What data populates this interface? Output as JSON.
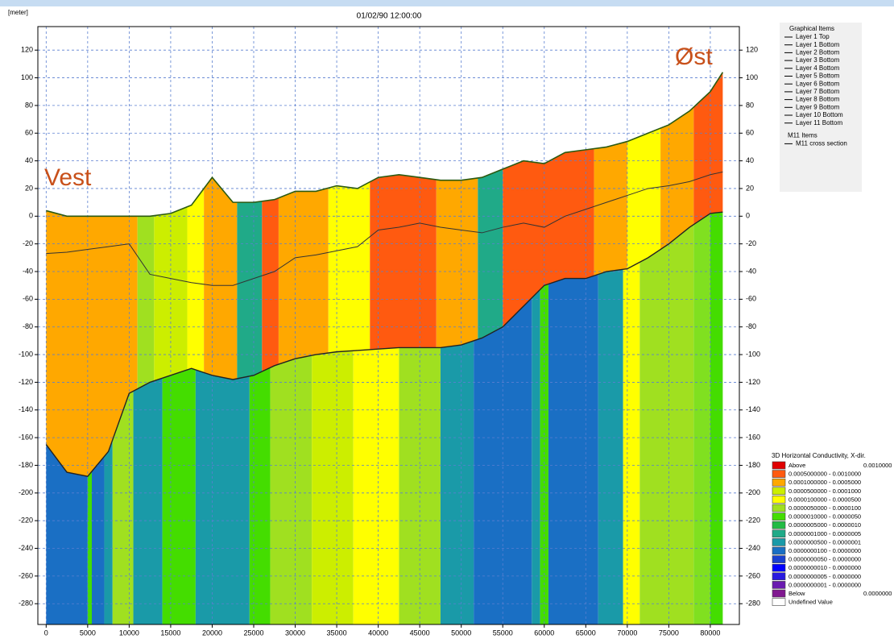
{
  "chart_data": {
    "type": "cross_section",
    "title": "01/02/90 12:00:00",
    "y_unit": "[meter]",
    "annotations": [
      "Vest",
      "Øst"
    ],
    "xlim": [
      -1000,
      83500
    ],
    "ylim": [
      -295,
      137
    ],
    "xticks": [
      0,
      5000,
      10000,
      15000,
      20000,
      25000,
      30000,
      35000,
      40000,
      45000,
      50000,
      55000,
      60000,
      65000,
      70000,
      75000,
      80000
    ],
    "yticks": [
      -280,
      -260,
      -240,
      -220,
      -200,
      -180,
      -160,
      -140,
      -120,
      -100,
      -80,
      -60,
      -40,
      -20,
      0,
      20,
      40,
      60,
      80,
      100,
      120
    ],
    "grid": true,
    "grid_color": "#5a7fd0",
    "x": [
      0,
      2500,
      5000,
      7500,
      10000,
      12500,
      15000,
      17500,
      20000,
      22500,
      25000,
      27500,
      30000,
      32500,
      35000,
      37500,
      40000,
      42500,
      45000,
      47500,
      50000,
      52500,
      55000,
      57500,
      60000,
      62500,
      65000,
      67500,
      70000,
      72500,
      75000,
      77500,
      80000,
      81500
    ],
    "surface": [
      4,
      0,
      0,
      0,
      0,
      0,
      2,
      8,
      28,
      10,
      10,
      12,
      18,
      18,
      22,
      20,
      28,
      30,
      28,
      26,
      26,
      28,
      34,
      40,
      38,
      46,
      48,
      50,
      54,
      60,
      66,
      76,
      90,
      104
    ],
    "mid": [
      -27,
      -26,
      -24,
      -22,
      -20,
      -42,
      -45,
      -48,
      -50,
      -50,
      -45,
      -40,
      -30,
      -28,
      -25,
      -22,
      -10,
      -8,
      -5,
      -8,
      -10,
      -12,
      -8,
      -5,
      -8,
      0,
      5,
      10,
      15,
      20,
      22,
      25,
      30,
      32
    ],
    "base": [
      -165,
      -185,
      -188,
      -170,
      -128,
      -120,
      -115,
      -110,
      -115,
      -118,
      -115,
      -108,
      -103,
      -100,
      -98,
      -97,
      -96,
      -95,
      -95,
      -95,
      -93,
      -88,
      -80,
      -65,
      -50,
      -45,
      -45,
      -40,
      -38,
      -30,
      -20,
      -8,
      2,
      3
    ],
    "upper_columns": [
      {
        "x0": -1000,
        "x1": 11000,
        "color": "#ffa800"
      },
      {
        "x0": 11000,
        "x1": 13000,
        "color": "#a0e020"
      },
      {
        "x0": 13000,
        "x1": 17000,
        "color": "#ccee00"
      },
      {
        "x0": 17000,
        "x1": 19000,
        "color": "#ffff00"
      },
      {
        "x0": 19000,
        "x1": 23000,
        "color": "#ffa800"
      },
      {
        "x0": 23000,
        "x1": 26000,
        "color": "#20aa88"
      },
      {
        "x0": 26000,
        "x1": 28000,
        "color": "#ff5a10"
      },
      {
        "x0": 28000,
        "x1": 34000,
        "color": "#ffa800"
      },
      {
        "x0": 34000,
        "x1": 39000,
        "color": "#ffff00"
      },
      {
        "x0": 39000,
        "x1": 47000,
        "color": "#ff5a10"
      },
      {
        "x0": 47000,
        "x1": 52000,
        "color": "#ffa800"
      },
      {
        "x0": 52000,
        "x1": 55000,
        "color": "#20aa88"
      },
      {
        "x0": 55000,
        "x1": 66000,
        "color": "#ff5a10"
      },
      {
        "x0": 66000,
        "x1": 70000,
        "color": "#ffa800"
      },
      {
        "x0": 70000,
        "x1": 74000,
        "color": "#ffff00"
      },
      {
        "x0": 74000,
        "x1": 78000,
        "color": "#ffa800"
      },
      {
        "x0": 78000,
        "x1": 83500,
        "color": "#ff5a10"
      }
    ],
    "lower_columns": [
      {
        "x0": -1000,
        "x1": 5000,
        "color": "#1a6fc4"
      },
      {
        "x0": 5000,
        "x1": 5500,
        "color": "#44dd00"
      },
      {
        "x0": 5500,
        "x1": 7000,
        "color": "#1a6fc4"
      },
      {
        "x0": 7000,
        "x1": 8000,
        "color": "#1a9aa8"
      },
      {
        "x0": 8000,
        "x1": 10500,
        "color": "#a0e020"
      },
      {
        "x0": 10500,
        "x1": 14000,
        "color": "#1a9aa8"
      },
      {
        "x0": 14000,
        "x1": 18000,
        "color": "#44dd00"
      },
      {
        "x0": 18000,
        "x1": 24500,
        "color": "#1a9aa8"
      },
      {
        "x0": 24500,
        "x1": 27000,
        "color": "#44dd00"
      },
      {
        "x0": 27000,
        "x1": 32000,
        "color": "#a0e020"
      },
      {
        "x0": 32000,
        "x1": 37000,
        "color": "#ccee00"
      },
      {
        "x0": 37000,
        "x1": 42500,
        "color": "#ffff00"
      },
      {
        "x0": 42500,
        "x1": 47500,
        "color": "#a0e020"
      },
      {
        "x0": 47500,
        "x1": 51500,
        "color": "#1a9aa8"
      },
      {
        "x0": 51500,
        "x1": 58500,
        "color": "#1a6fc4"
      },
      {
        "x0": 58500,
        "x1": 59500,
        "color": "#1a9aa8"
      },
      {
        "x0": 59500,
        "x1": 60500,
        "color": "#44dd00"
      },
      {
        "x0": 60500,
        "x1": 66500,
        "color": "#1a6fc4"
      },
      {
        "x0": 66500,
        "x1": 69500,
        "color": "#1a9aa8"
      },
      {
        "x0": 69500,
        "x1": 71500,
        "color": "#ffff00"
      },
      {
        "x0": 71500,
        "x1": 78000,
        "color": "#a0e020"
      },
      {
        "x0": 78000,
        "x1": 80000,
        "color": "#80e020"
      },
      {
        "x0": 80000,
        "x1": 83500,
        "color": "#44dd00"
      }
    ],
    "graphical_items": {
      "title": "Graphical Items",
      "items": [
        "Layer 1 Top",
        "Layer 1 Bottom",
        "Layer 2 Bottom",
        "Layer 3 Bottom",
        "Layer 4 Bottom",
        "Layer 5 Bottom",
        "Layer 6 Bottom",
        "Layer 7 Bottom",
        "Layer 8 Bottom",
        "Layer 9 Bottom",
        "Layer 10 Bottom",
        "Layer 11 Bottom"
      ]
    },
    "m11_items": {
      "title": "M11 Items",
      "items": [
        "M11 cross section"
      ]
    },
    "conductivity_legend": {
      "title": "3D Horizontal Conductivity, X-dir.",
      "entries": [
        {
          "label": "Above",
          "value": "0.0010000",
          "color": "#e00000"
        },
        {
          "label": "0.0005000000 - 0.0010000",
          "color": "#ff5a10"
        },
        {
          "label": "0.0001000000 - 0.0005000",
          "color": "#ffa800"
        },
        {
          "label": "0.0000500000 - 0.0001000",
          "color": "#ccee00"
        },
        {
          "label": "0.0000100000 - 0.0000500",
          "color": "#ffff00"
        },
        {
          "label": "0.0000050000 - 0.0000100",
          "color": "#a0e020"
        },
        {
          "label": "0.0000010000 - 0.0000050",
          "color": "#44dd00"
        },
        {
          "label": "0.0000005000 - 0.0000010",
          "color": "#22bb44"
        },
        {
          "label": "0.0000001000 - 0.0000005",
          "color": "#20aa88"
        },
        {
          "label": "0.0000000500 - 0.0000001",
          "color": "#1a9aa8"
        },
        {
          "label": "0.0000000100 - 0.0000000",
          "color": "#1a6fc4"
        },
        {
          "label": "0.0000000050 - 0.0000000",
          "color": "#1a40d0"
        },
        {
          "label": "0.0000000010 - 0.0000000",
          "color": "#0000ff"
        },
        {
          "label": "0.0000000005 - 0.0000000",
          "color": "#2a1ae0"
        },
        {
          "label": "0.0000000001 - 0.0000000",
          "color": "#6a1ab0"
        },
        {
          "label": "Below",
          "value": "0.0000000",
          "color": "#801890"
        },
        {
          "label": "Undefined Value",
          "color": "#ffffff"
        }
      ]
    }
  }
}
